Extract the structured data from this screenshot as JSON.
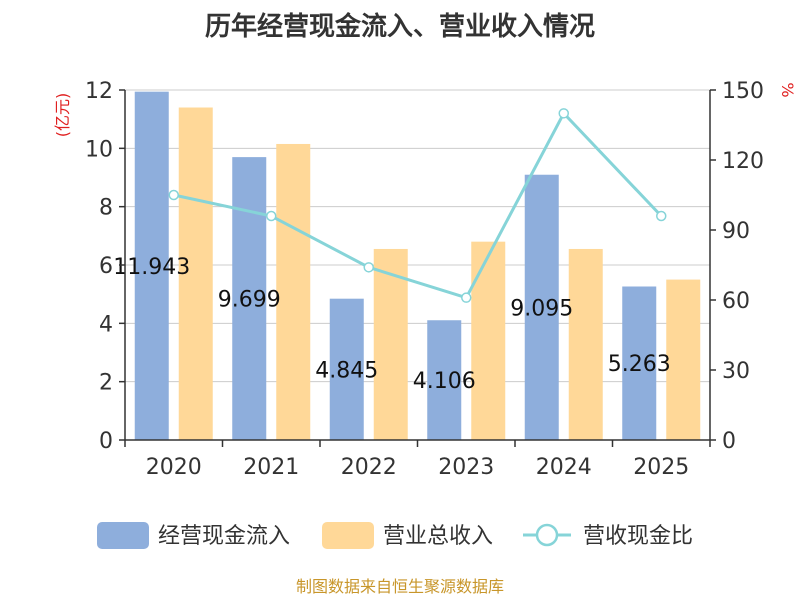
{
  "chart_data": {
    "type": "bar+line",
    "title": "历年经营现金流入、营业收入情况",
    "categories": [
      "2020",
      "2021",
      "2022",
      "2023",
      "2024",
      "2025"
    ],
    "y_left": {
      "label": "(亿元)",
      "ylim": [
        0,
        12
      ],
      "ticks": [
        "0",
        "2",
        "4",
        "6",
        "8",
        "10",
        "12"
      ]
    },
    "y_right": {
      "label": "%",
      "ylim": [
        0,
        150
      ],
      "ticks": [
        "0",
        "30",
        "60",
        "90",
        "120",
        "150"
      ]
    },
    "grid": true,
    "legend_position": "bottom",
    "series": [
      {
        "name": "经营现金流入",
        "type": "bar",
        "axis": "left",
        "color": "#8eaedc",
        "values": [
          11.943,
          9.699,
          4.845,
          4.106,
          9.095,
          5.263
        ],
        "labels": [
          "11.943",
          "9.699",
          "4.845",
          "4.106",
          "9.095",
          "5.263"
        ]
      },
      {
        "name": "营业总收入",
        "type": "bar",
        "axis": "left",
        "color": "#ffd898",
        "values": [
          11.4,
          10.15,
          6.55,
          6.8,
          6.55,
          5.5
        ]
      },
      {
        "name": "营收现金比",
        "type": "line",
        "axis": "right",
        "color": "#86d4d8",
        "values": [
          105,
          96,
          74,
          61,
          140,
          96
        ]
      }
    ],
    "source": "制图数据来自恒生聚源数据库"
  }
}
